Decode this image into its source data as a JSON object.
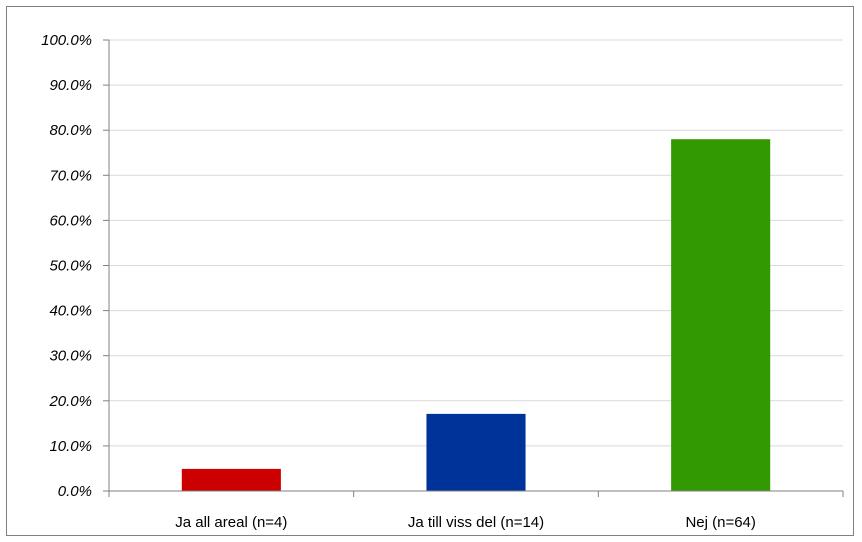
{
  "chart_data": {
    "type": "bar",
    "categories": [
      "Ja all areal (n=4)",
      "Ja till viss del (n=14)",
      "Nej (n=64)"
    ],
    "values": [
      4.9,
      17.1,
      78.0
    ],
    "colors": [
      "#cc0000",
      "#003399",
      "#339900"
    ],
    "title": "",
    "xlabel": "",
    "ylabel": "",
    "ylim": [
      0,
      100
    ],
    "ytick_step": 10,
    "ytick_format": "percent-1dp",
    "grid": true,
    "legend": "none"
  }
}
